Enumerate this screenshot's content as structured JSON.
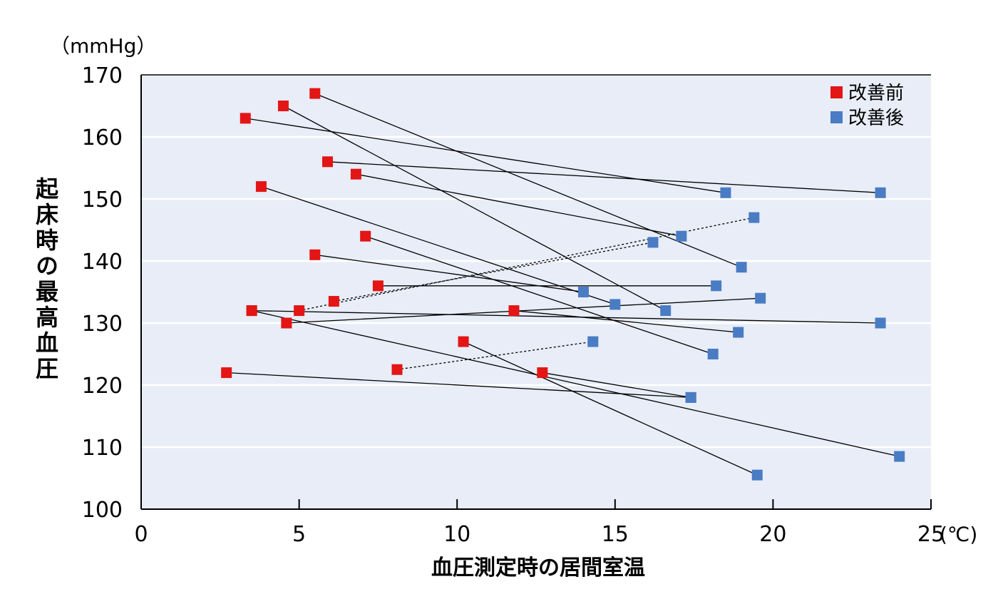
{
  "chart_data": {
    "type": "scatter",
    "title": "",
    "y_unit": "（mmHg）",
    "x_unit": "(℃)",
    "xlabel": "血圧測定時の居間室温",
    "ylabel": "起床時の最高血圧",
    "xlim": [
      0,
      25
    ],
    "ylim": [
      100,
      170
    ],
    "x_ticks": [
      "0",
      "5",
      "10",
      "15",
      "20",
      "25"
    ],
    "y_ticks": [
      "100",
      "110",
      "120",
      "130",
      "140",
      "150",
      "160",
      "170"
    ],
    "grid": true,
    "legend_position": "top-right",
    "colors": {
      "before": "#e31515",
      "after": "#4a7cc4",
      "plot_bg": "#e8edf7",
      "grid": "#ffffff"
    },
    "series": [
      {
        "name": "改善前",
        "color": "#e31515"
      },
      {
        "name": "改善後",
        "color": "#4a7cc4"
      }
    ],
    "pairs": [
      {
        "before": [
          5.5,
          167
        ],
        "after": [
          19.0,
          139
        ],
        "dashed": false
      },
      {
        "before": [
          4.5,
          165
        ],
        "after": [
          16.6,
          132
        ],
        "dashed": false
      },
      {
        "before": [
          3.3,
          163
        ],
        "after": [
          18.5,
          151
        ],
        "dashed": false
      },
      {
        "before": [
          5.9,
          156
        ],
        "after": [
          23.4,
          151
        ],
        "dashed": false
      },
      {
        "before": [
          6.8,
          154
        ],
        "after": [
          17.1,
          144
        ],
        "dashed": false
      },
      {
        "before": [
          3.8,
          152
        ],
        "after": [
          15.0,
          133
        ],
        "dashed": false
      },
      {
        "before": [
          7.1,
          144
        ],
        "after": [
          18.1,
          125
        ],
        "dashed": false
      },
      {
        "before": [
          5.5,
          141
        ],
        "after": [
          14.0,
          135
        ],
        "dashed": false
      },
      {
        "before": [
          7.5,
          136
        ],
        "after": [
          18.2,
          136
        ],
        "dashed": false
      },
      {
        "before": [
          5.0,
          132
        ],
        "after": [
          19.4,
          147
        ],
        "dashed": true
      },
      {
        "before": [
          6.1,
          133.5
        ],
        "after": [
          16.2,
          143
        ],
        "dashed": true
      },
      {
        "before": [
          3.5,
          132
        ],
        "after": [
          23.4,
          130
        ],
        "dashed": false
      },
      {
        "before": [
          4.6,
          130
        ],
        "after": [
          19.6,
          134
        ],
        "dashed": false
      },
      {
        "before": [
          11.8,
          132
        ],
        "after": [
          18.9,
          128.5
        ],
        "dashed": false
      },
      {
        "before": [
          3.5,
          132
        ],
        "after": [
          24.0,
          108.5
        ],
        "dashed": false
      },
      {
        "before": [
          10.2,
          127
        ],
        "after": [
          19.5,
          105.5
        ],
        "dashed": false
      },
      {
        "before": [
          8.1,
          122.5
        ],
        "after": [
          14.3,
          127
        ],
        "dashed": true
      },
      {
        "before": [
          12.7,
          122
        ],
        "after": [
          17.4,
          118
        ],
        "dashed": false
      },
      {
        "before": [
          2.7,
          122
        ],
        "after": [
          17.4,
          118
        ],
        "dashed": false
      }
    ]
  }
}
